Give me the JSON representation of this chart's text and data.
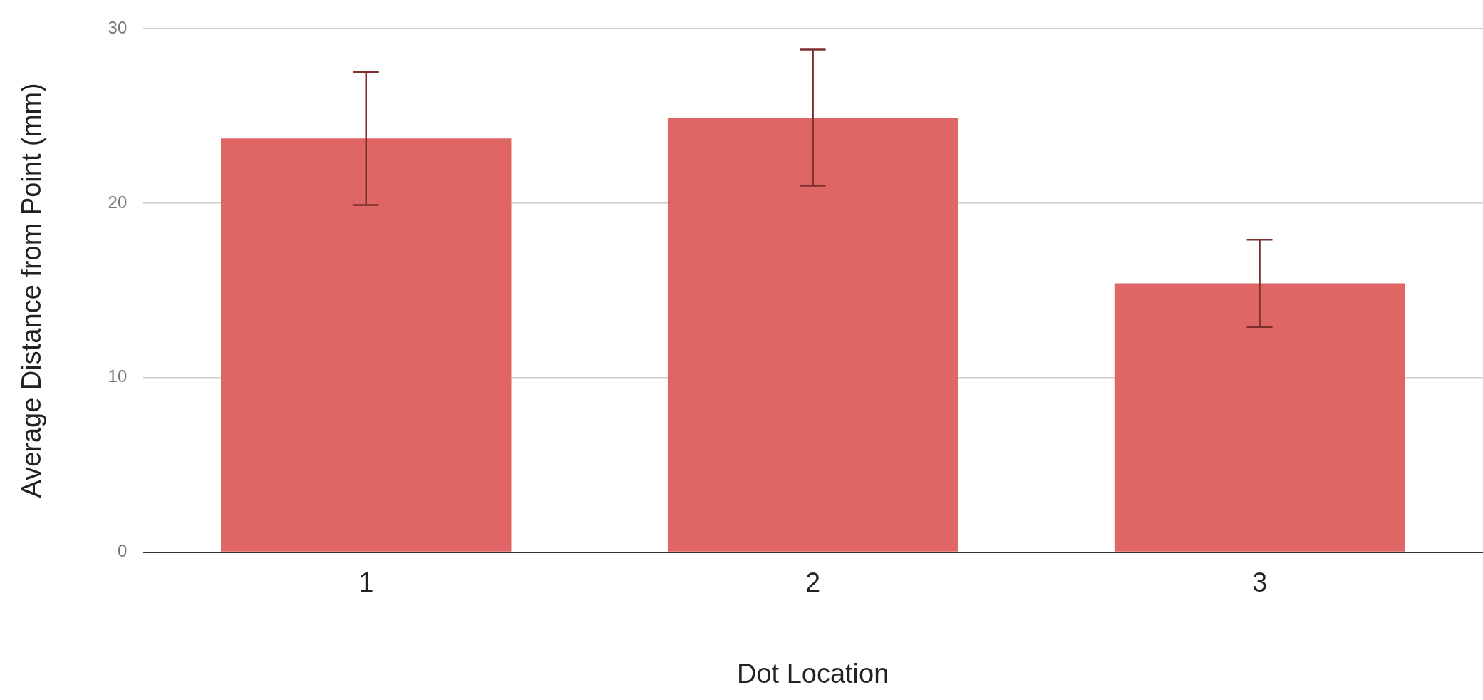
{
  "chart_data": {
    "type": "bar",
    "xlabel": "Dot Location",
    "ylabel": "Average Distance from Point (mm)",
    "categories": [
      "1",
      "2",
      "3"
    ],
    "values": [
      23.7,
      24.9,
      15.4
    ],
    "errors": [
      3.8,
      3.9,
      2.5
    ],
    "color": "#e06666",
    "ylim": [
      0,
      30
    ],
    "yticks": [
      0,
      10,
      20,
      30
    ],
    "grid": "y",
    "legend": false
  }
}
